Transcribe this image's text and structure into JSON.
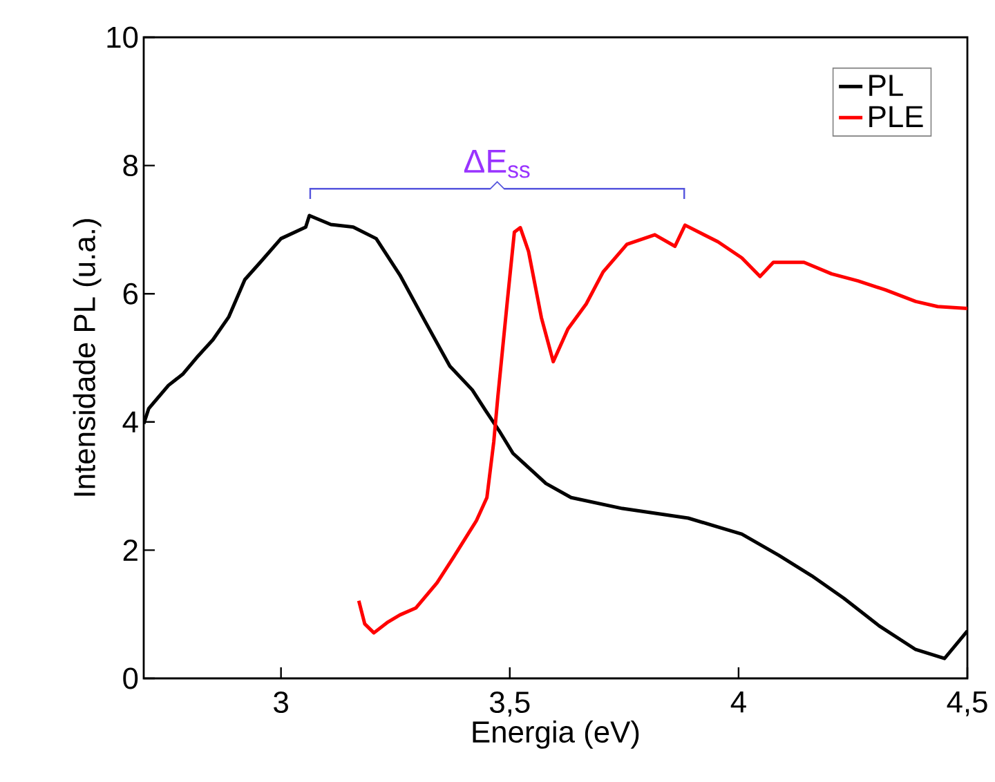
{
  "chart_data": {
    "type": "line",
    "xlabel": "Energia (eV)",
    "ylabel": "Intensidade PL (u.a.)",
    "xlim": [
      2.7,
      4.5
    ],
    "ylim": [
      0,
      10
    ],
    "xticks": [
      3,
      {
        "value": 3.5,
        "label": "3,5"
      },
      4,
      {
        "value": 4.5,
        "label": "4,5"
      }
    ],
    "yticks": [
      0,
      2,
      4,
      6,
      8,
      10
    ],
    "legend": "top right",
    "grid": false,
    "annotations": [
      "ΔE$_{ss}$"
    ],
    "series": [
      {
        "name": "PL",
        "color": "#000000",
        "x": [
          2.7,
          2.711,
          2.754,
          2.786,
          2.819,
          2.851,
          2.886,
          2.921,
          2.956,
          3.0,
          3.054,
          3.062,
          3.109,
          3.158,
          3.208,
          3.26,
          3.314,
          3.369,
          3.418,
          3.447,
          3.477,
          3.507,
          3.579,
          3.634,
          3.746,
          3.89,
          4.007,
          4.088,
          4.16,
          4.23,
          4.307,
          4.387,
          4.45,
          4.5
        ],
        "values": [
          3.97,
          4.21,
          4.57,
          4.75,
          5.03,
          5.28,
          5.64,
          6.22,
          6.5,
          6.86,
          7.04,
          7.22,
          7.08,
          7.04,
          6.86,
          6.29,
          5.58,
          4.87,
          4.5,
          4.18,
          3.86,
          3.51,
          3.04,
          2.82,
          2.65,
          2.5,
          2.25,
          1.92,
          1.6,
          1.25,
          0.82,
          0.45,
          0.31,
          0.74
        ]
      },
      {
        "name": "PLE",
        "color": "#ff0000",
        "x": [
          3.17,
          3.183,
          3.203,
          3.234,
          3.26,
          3.295,
          3.341,
          3.378,
          3.427,
          3.45,
          3.465,
          3.474,
          3.495,
          3.51,
          3.523,
          3.541,
          3.569,
          3.595,
          3.627,
          3.667,
          3.704,
          3.756,
          3.817,
          3.861,
          3.883,
          3.955,
          4.007,
          4.047,
          4.076,
          4.143,
          4.203,
          4.261,
          4.321,
          4.387,
          4.435,
          4.5
        ],
        "values": [
          1.21,
          0.85,
          0.71,
          0.88,
          0.99,
          1.1,
          1.49,
          1.9,
          2.46,
          2.82,
          3.69,
          4.4,
          5.91,
          6.96,
          7.03,
          6.66,
          5.63,
          4.94,
          5.45,
          5.84,
          6.34,
          6.77,
          6.92,
          6.74,
          7.07,
          6.81,
          6.56,
          6.27,
          6.49,
          6.49,
          6.31,
          6.2,
          6.06,
          5.88,
          5.8,
          5.77
        ]
      }
    ]
  }
}
